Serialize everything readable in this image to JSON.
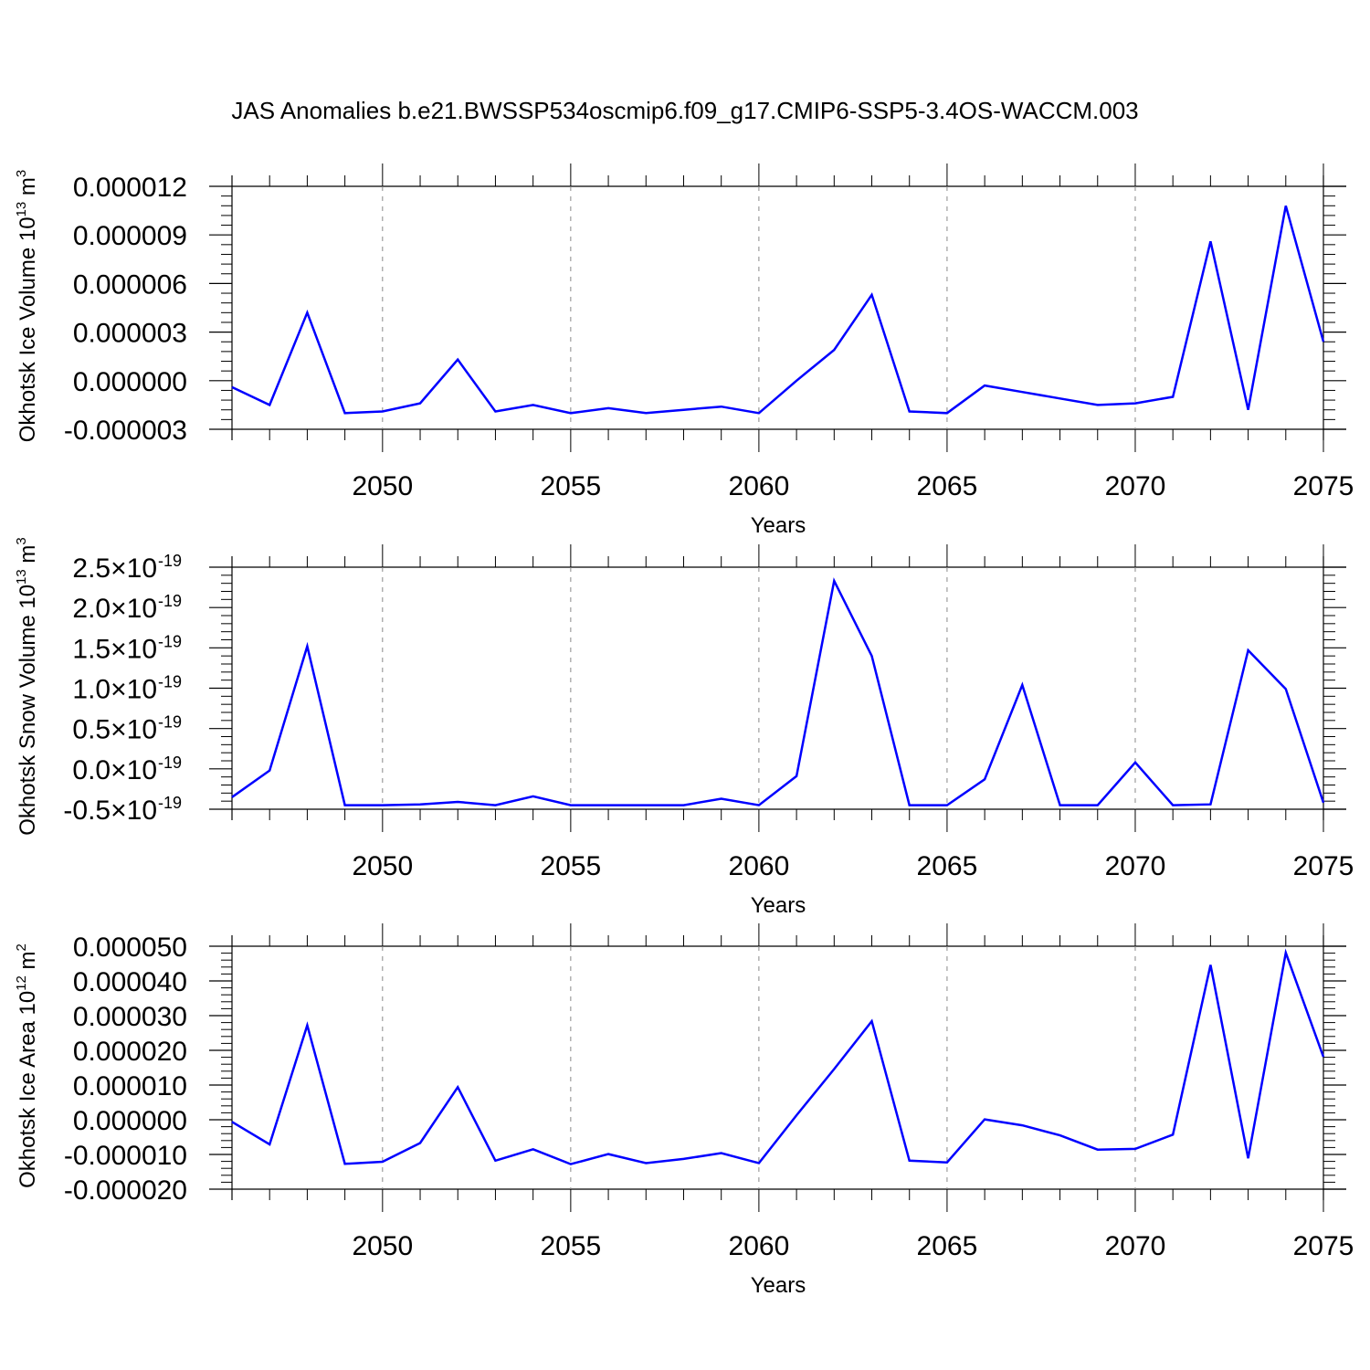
{
  "title": "JAS Anomalies b.e21.BWSSP534oscmip6.f09_g17.CMIP6-SSP5-3.4OS-WACCM.003",
  "colors": {
    "line": "#0000ff",
    "axis": "#000000",
    "grid": "#888888"
  },
  "chart_data": [
    {
      "type": "line",
      "ylabel": "Okhotsk Ice Volume 10",
      "ylabel_exp": "13",
      "ylabel_unit": " m",
      "ylabel_unit_exp": "3",
      "xlabel": "Years",
      "xlim": [
        2046,
        2075
      ],
      "ylim": [
        -3e-06,
        1.2e-05
      ],
      "yticks": [
        -3e-06,
        0,
        3e-06,
        6e-06,
        9e-06,
        1.2e-05
      ],
      "ytick_labels": [
        "-0.000003",
        "0.000000",
        "0.000003",
        "0.000006",
        "0.000009",
        "0.000012"
      ],
      "xticks": [
        2050,
        2055,
        2060,
        2065,
        2070,
        2075
      ],
      "xtick_labels": [
        "2050",
        "2055",
        "2060",
        "2065",
        "2070",
        "2075"
      ],
      "x": [
        2046,
        2047,
        2048,
        2049,
        2050,
        2051,
        2052,
        2053,
        2054,
        2055,
        2056,
        2057,
        2058,
        2059,
        2060,
        2061,
        2062,
        2063,
        2064,
        2065,
        2066,
        2067,
        2068,
        2069,
        2070,
        2071,
        2072,
        2073,
        2074,
        2075
      ],
      "values": [
        -4e-07,
        -1.5e-06,
        4.2e-06,
        -2e-06,
        -1.9e-06,
        -1.4e-06,
        1.3e-06,
        -1.9e-06,
        -1.5e-06,
        -2e-06,
        -1.7e-06,
        -2e-06,
        -1.8e-06,
        -1.6e-06,
        -2e-06,
        0.0,
        1.9e-06,
        5.3e-06,
        -1.9e-06,
        -2e-06,
        -3e-07,
        -7e-07,
        -1.1e-06,
        -1.5e-06,
        -1.4e-06,
        -1e-06,
        8.6e-06,
        -1.8e-06,
        1.08e-05,
        2.4e-06
      ]
    },
    {
      "type": "line",
      "ylabel": "Okhotsk Snow Volume 10",
      "ylabel_exp": "13",
      "ylabel_unit": " m",
      "ylabel_unit_exp": "3",
      "xlabel": "Years",
      "xlim": [
        2046,
        2075
      ],
      "ylim": [
        -5e-20,
        2.5e-19
      ],
      "yticks": [
        -5e-20,
        0,
        5e-20,
        1e-19,
        1.5e-19,
        2e-19,
        2.5e-19
      ],
      "ytick_labels": [
        "-0.5",
        "0.0",
        "0.5",
        "1.0",
        "1.5",
        "2.0",
        "2.5"
      ],
      "ytick_mult": "×10",
      "ytick_exp": "-19",
      "xticks": [
        2050,
        2055,
        2060,
        2065,
        2070,
        2075
      ],
      "xtick_labels": [
        "2050",
        "2055",
        "2060",
        "2065",
        "2070",
        "2075"
      ],
      "x": [
        2046,
        2047,
        2048,
        2049,
        2050,
        2051,
        2052,
        2053,
        2054,
        2055,
        2056,
        2057,
        2058,
        2059,
        2060,
        2061,
        2062,
        2063,
        2064,
        2065,
        2066,
        2067,
        2068,
        2069,
        2070,
        2071,
        2072,
        2073,
        2074,
        2075
      ],
      "values": [
        -3.5e-20,
        -2e-21,
        1.52e-19,
        -4.5e-20,
        -4.5e-20,
        -4.4e-20,
        -4.1e-20,
        -4.5e-20,
        -3.4e-20,
        -4.5e-20,
        -4.5e-20,
        -4.5e-20,
        -4.5e-20,
        -3.7e-20,
        -4.5e-20,
        -9e-21,
        2.33e-19,
        1.4e-19,
        -4.5e-20,
        -4.5e-20,
        -1.3e-20,
        1.04e-19,
        -4.5e-20,
        -4.5e-20,
        8e-21,
        -4.5e-20,
        -4.4e-20,
        1.47e-19,
        9.9e-20,
        -4.2e-20
      ]
    },
    {
      "type": "line",
      "ylabel": "Okhotsk Ice Area 10",
      "ylabel_exp": "12",
      "ylabel_unit": " m",
      "ylabel_unit_exp": "2",
      "xlabel": "Years",
      "xlim": [
        2046,
        2075
      ],
      "ylim": [
        -2e-05,
        5e-05
      ],
      "yticks": [
        -2e-05,
        -1e-05,
        0,
        1e-05,
        2e-05,
        3e-05,
        4e-05,
        5e-05
      ],
      "ytick_labels": [
        "-0.000020",
        "-0.000010",
        "0.000000",
        "0.000010",
        "0.000020",
        "0.000030",
        "0.000040",
        "0.000050"
      ],
      "xticks": [
        2050,
        2055,
        2060,
        2065,
        2070,
        2075
      ],
      "xtick_labels": [
        "2050",
        "2055",
        "2060",
        "2065",
        "2070",
        "2075"
      ],
      "x": [
        2046,
        2047,
        2048,
        2049,
        2050,
        2051,
        2052,
        2053,
        2054,
        2055,
        2056,
        2057,
        2058,
        2059,
        2060,
        2061,
        2062,
        2063,
        2064,
        2065,
        2066,
        2067,
        2068,
        2069,
        2070,
        2071,
        2072,
        2073,
        2074,
        2075
      ],
      "values": [
        -6e-07,
        -7.1e-06,
        2.72e-05,
        -1.27e-05,
        -1.21e-05,
        -6.7e-06,
        9.4e-06,
        -1.18e-05,
        -8.5e-06,
        -1.28e-05,
        -9.9e-06,
        -1.25e-05,
        -1.13e-05,
        -9.6e-06,
        -1.25e-05,
        1.3e-06,
        1.46e-05,
        2.84e-05,
        -1.18e-05,
        -1.23e-05,
        1e-07,
        -1.6e-06,
        -4.5e-06,
        -8.6e-06,
        -8.4e-06,
        -4.3e-06,
        4.46e-05,
        -1.11e-05,
        4.81e-05,
        1.81e-05
      ]
    }
  ]
}
